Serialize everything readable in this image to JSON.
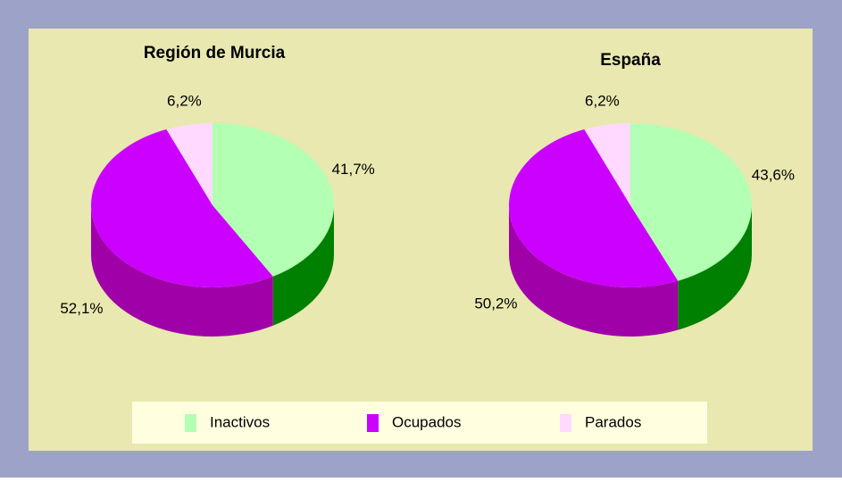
{
  "chart_data": [
    {
      "type": "pie",
      "title": "Región de Murcia",
      "categories": [
        "Inactivos",
        "Ocupados",
        "Parados"
      ],
      "colors": [
        "#b3ffb3",
        "#cc00ff",
        "#ffd9ff"
      ],
      "side_colors": [
        "#008000",
        "#a000a8",
        "#e0b0e0"
      ],
      "values": [
        41.7,
        52.1,
        6.2
      ],
      "value_labels": [
        "41,7%",
        "52,1%",
        "6,2%"
      ]
    },
    {
      "type": "pie",
      "title": "España",
      "values": [
        43.6,
        50.2,
        6.2
      ],
      "value_labels": [
        "43,6%",
        "50,2%",
        "6,2%"
      ]
    }
  ]
}
